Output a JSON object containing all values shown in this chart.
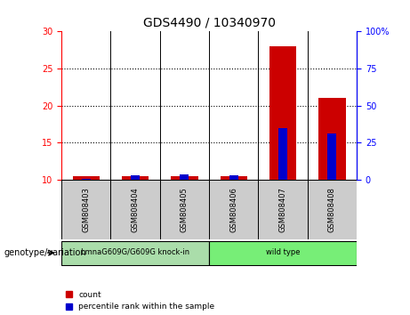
{
  "title": "GDS4490 / 10340970",
  "samples": [
    "GSM808403",
    "GSM808404",
    "GSM808405",
    "GSM808406",
    "GSM808407",
    "GSM808408"
  ],
  "count_values": [
    10.4,
    10.4,
    10.5,
    10.5,
    28.0,
    21.0
  ],
  "percentile_values": [
    0.5,
    3.0,
    3.5,
    3.0,
    35.0,
    31.0
  ],
  "bar_color_count": "#cc0000",
  "bar_color_pct": "#0000cc",
  "ylim_left": [
    10,
    30
  ],
  "ylim_right": [
    0,
    100
  ],
  "yticks_left": [
    10,
    15,
    20,
    25,
    30
  ],
  "yticks_right": [
    0,
    25,
    50,
    75,
    100
  ],
  "ytick_labels_right": [
    "0",
    "25",
    "50",
    "75",
    "100%"
  ],
  "groups": [
    {
      "label": "LmnaG609G/G609G knock-in",
      "samples": [
        0,
        1,
        2
      ],
      "color": "#77dd77"
    },
    {
      "label": "wild type",
      "samples": [
        3,
        4,
        5
      ],
      "color": "#77dd77"
    }
  ],
  "group_row_label": "genotype/variation",
  "legend_count": "count",
  "legend_pct": "percentile rank within the sample",
  "bg_plot": "#ffffff",
  "bg_sample_row": "#cccccc",
  "title_fontsize": 10,
  "tick_fontsize": 7,
  "sample_fontsize": 6
}
